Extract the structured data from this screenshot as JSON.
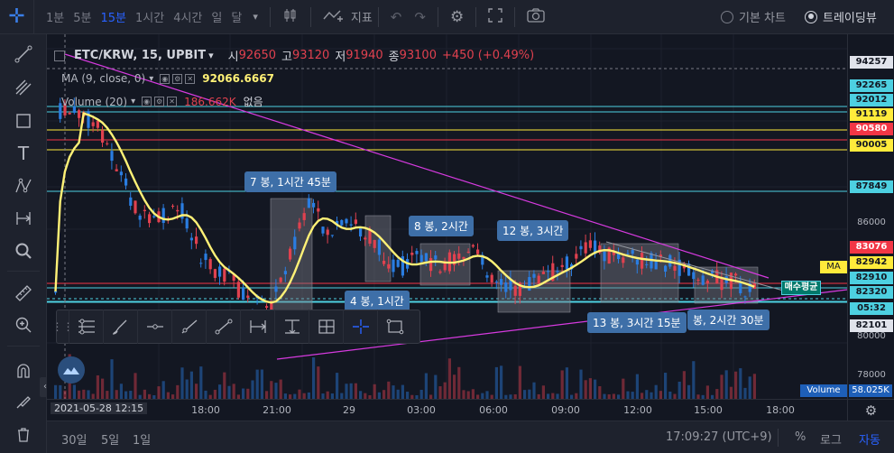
{
  "topbar": {
    "timeframes": [
      "1분",
      "5분",
      "15분",
      "1시간",
      "4시간",
      "일",
      "달"
    ],
    "active_tf": "15분",
    "indicator_label": "지표",
    "chart_mode_basic": "기본 차트",
    "chart_mode_tv": "트레이딩뷰"
  },
  "legend": {
    "symbol": "ETC/KRW, 15, UPBIT",
    "open_label": "시",
    "open": "92650",
    "high_label": "고",
    "high": "93120",
    "low_label": "저",
    "low": "91940",
    "close_label": "종",
    "close": "93100",
    "change": "+450 (+0.49%)",
    "ma_label": "MA (9, close, 0)",
    "ma_value": "92066.6667",
    "vol_label": "Volume (20)",
    "vol_value": "186.662K",
    "vol_extra": "없음"
  },
  "price_labels": [
    {
      "text": "94257",
      "bg": "#e0e3eb",
      "cls": "dark"
    },
    {
      "text": "92265",
      "bg": "#4dd0e1",
      "cls": "dark"
    },
    {
      "text": "92012",
      "bg": "#4dd0e1",
      "cls": "dark"
    },
    {
      "text": "91119",
      "bg": "#ffeb3b",
      "cls": "dark"
    },
    {
      "text": "90580",
      "bg": "#f23645",
      "cls": "light"
    },
    {
      "text": "90005",
      "bg": "#ffeb3b",
      "cls": "dark"
    },
    {
      "text": "87849",
      "bg": "#4dd0e1",
      "cls": "dark"
    },
    {
      "text": "86000",
      "bg": "",
      "cls": ""
    },
    {
      "text": "83076",
      "bg": "#f23645",
      "cls": "light"
    },
    {
      "text": "82942",
      "bg": "#ffeb3b",
      "cls": "dark"
    },
    {
      "text": "82910",
      "bg": "#4dd0e1",
      "cls": "dark"
    },
    {
      "text": "82320",
      "bg": "#4dd0e1",
      "cls": "dark"
    },
    {
      "text": "05:32",
      "bg": "#4dd0e1",
      "cls": "dark"
    },
    {
      "text": "82101",
      "bg": "#e0e3eb",
      "cls": "dark"
    },
    {
      "text": "80000",
      "bg": "",
      "cls": ""
    },
    {
      "text": "78000",
      "bg": "",
      "cls": ""
    }
  ],
  "ma_tag": "MA",
  "avg_buy_label": "매수평균",
  "volume_tag": "Volume",
  "volume_value": "58.025K",
  "measure_labels": [
    "7 봉, 1시간 45분",
    "8 봉, 2시간",
    "12 봉, 3시간",
    "4 봉, 1시간",
    "13 봉, 3시간 15분",
    "봉, 2시간 30분"
  ],
  "time_labels": [
    "2021-05-28  12:15",
    "18:00",
    "21:00",
    "29",
    "03:00",
    "06:00",
    "09:00",
    "12:00",
    "15:00",
    "18:00"
  ],
  "bottom": {
    "ranges": [
      "30일",
      "5일",
      "1일"
    ],
    "clock": "17:09:27 (UTC+9)",
    "percent": "%",
    "log": "로그",
    "auto": "자동"
  },
  "colors": {
    "bg": "#131722",
    "up": "#e0414f",
    "down": "#2a7de1",
    "ma": "#fff176",
    "trend": "#d63adf",
    "accent": "#2962ff"
  }
}
